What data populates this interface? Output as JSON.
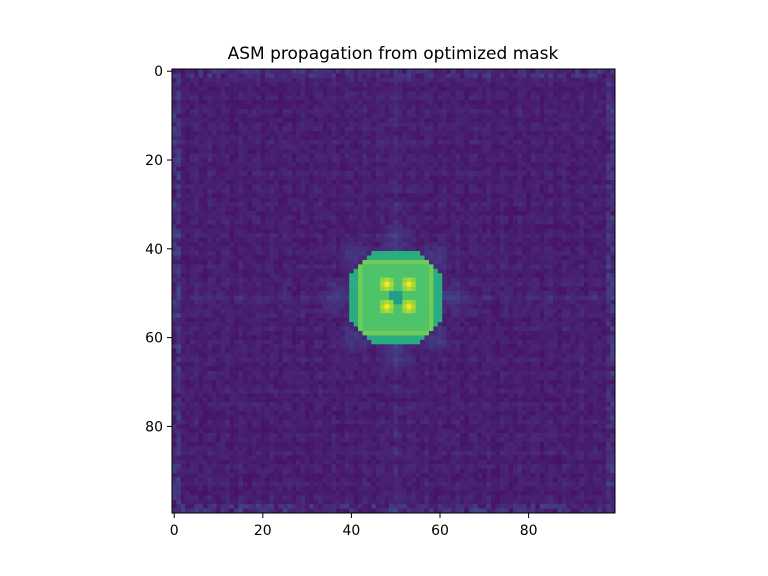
{
  "chart_data": {
    "type": "heatmap",
    "title": "ASM propagation from optimized mask",
    "xlabel": "",
    "ylabel": "",
    "colormap": "viridis",
    "grid": false,
    "legend": "none",
    "shape": [
      100,
      100
    ],
    "xlim": [
      -0.5,
      99.5
    ],
    "ylim": [
      99.5,
      -0.5
    ],
    "x_ticks": [
      0,
      20,
      40,
      60,
      80
    ],
    "y_ticks": [
      0,
      20,
      40,
      60,
      80
    ],
    "x_tick_labels": [
      "0",
      "20",
      "40",
      "60",
      "80"
    ],
    "y_tick_labels": [
      "0",
      "20",
      "40",
      "60",
      "80"
    ],
    "features": {
      "central_block": {
        "center": [
          50,
          51
        ],
        "half_width": 10,
        "value": 0.72
      },
      "peaks": [
        {
          "x": 48,
          "y": 48,
          "value": 1.0
        },
        {
          "x": 53,
          "y": 48,
          "value": 1.0
        },
        {
          "x": 48,
          "y": 53,
          "value": 1.0
        },
        {
          "x": 53,
          "y": 53,
          "value": 1.0
        }
      ],
      "background_level": 0.05
    }
  }
}
